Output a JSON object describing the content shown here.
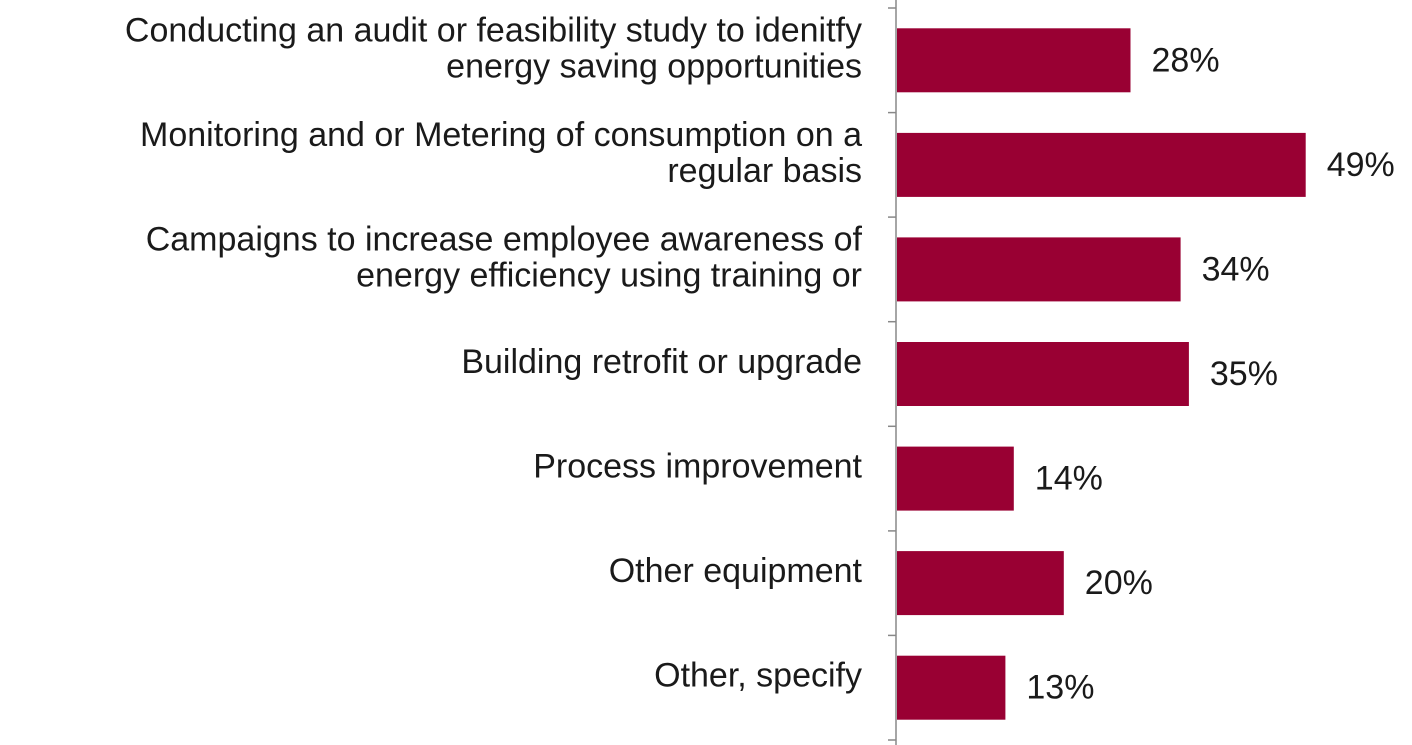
{
  "chart_data": {
    "type": "bar",
    "orientation": "horizontal",
    "categories": [
      [
        "Conducting an audit or feasibility study to idenitfy",
        "energy saving opportunities"
      ],
      [
        "Monitoring and or Metering of consumption on a",
        "regular basis"
      ],
      [
        "Campaigns to increase employee awareness of",
        "energy efficiency using training or"
      ],
      [
        "Building retrofit or upgrade"
      ],
      [
        "Process improvement"
      ],
      [
        "Other equipment"
      ],
      [
        "Other, specify"
      ]
    ],
    "values": [
      28,
      49,
      34,
      35,
      14,
      20,
      13
    ],
    "value_labels": [
      "28%",
      "49%",
      "34%",
      "35%",
      "14%",
      "20%",
      "13%"
    ],
    "xlim": [
      0,
      100
    ],
    "grid": false,
    "legend": "none",
    "bar_color": "#990033",
    "axis_color": "#888888"
  }
}
